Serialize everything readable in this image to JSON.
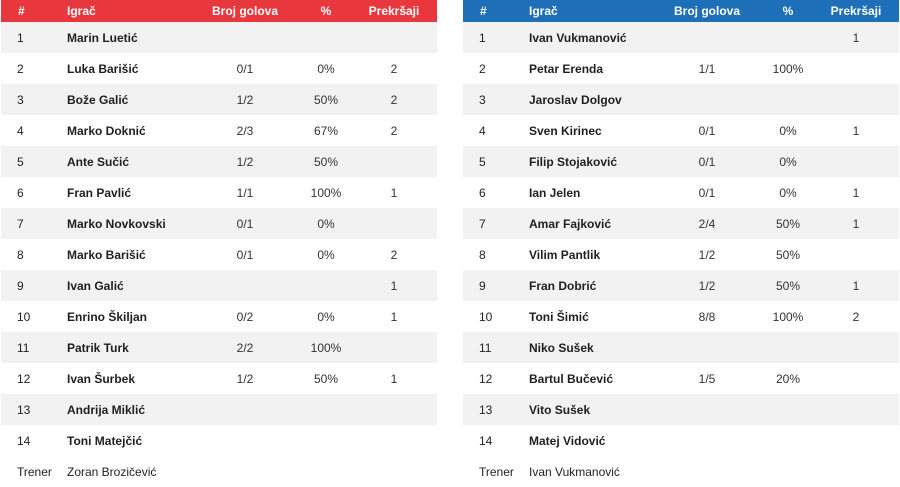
{
  "columns": {
    "num": "#",
    "player": "Igrač",
    "goals": "Broj golova",
    "pct": "%",
    "fouls": "Prekršaji"
  },
  "home": {
    "accent": "#e8373d",
    "rows": [
      {
        "num": "1",
        "player": "Marin Luetić",
        "goals": "",
        "pct": "",
        "fouls": ""
      },
      {
        "num": "2",
        "player": "Luka Barišić",
        "goals": "0/1",
        "pct": "0%",
        "fouls": "2"
      },
      {
        "num": "3",
        "player": "Bože Galić",
        "goals": "1/2",
        "pct": "50%",
        "fouls": "2"
      },
      {
        "num": "4",
        "player": "Marko Doknić",
        "goals": "2/3",
        "pct": "67%",
        "fouls": "2"
      },
      {
        "num": "5",
        "player": "Ante Sučić",
        "goals": "1/2",
        "pct": "50%",
        "fouls": ""
      },
      {
        "num": "6",
        "player": "Fran Pavlić",
        "goals": "1/1",
        "pct": "100%",
        "fouls": "1"
      },
      {
        "num": "7",
        "player": "Marko Novkovski",
        "goals": "0/1",
        "pct": "0%",
        "fouls": ""
      },
      {
        "num": "8",
        "player": "Marko Barišić",
        "goals": "0/1",
        "pct": "0%",
        "fouls": "2"
      },
      {
        "num": "9",
        "player": "Ivan Galić",
        "goals": "",
        "pct": "",
        "fouls": "1"
      },
      {
        "num": "10",
        "player": "Enrino Škiljan",
        "goals": "0/2",
        "pct": "0%",
        "fouls": "1"
      },
      {
        "num": "11",
        "player": "Patrik Turk",
        "goals": "2/2",
        "pct": "100%",
        "fouls": ""
      },
      {
        "num": "12",
        "player": "Ivan Šurbek",
        "goals": "1/2",
        "pct": "50%",
        "fouls": "1"
      },
      {
        "num": "13",
        "player": "Andrija Miklić",
        "goals": "",
        "pct": "",
        "fouls": ""
      },
      {
        "num": "14",
        "player": "Toni Matejčić",
        "goals": "",
        "pct": "",
        "fouls": ""
      }
    ],
    "coach": {
      "label": "Trener",
      "name": "Zoran Brozičević"
    }
  },
  "away": {
    "accent": "#1d70b8",
    "rows": [
      {
        "num": "1",
        "player": "Ivan Vukmanović",
        "goals": "",
        "pct": "",
        "fouls": "1"
      },
      {
        "num": "2",
        "player": "Petar Erenda",
        "goals": "1/1",
        "pct": "100%",
        "fouls": ""
      },
      {
        "num": "3",
        "player": "Jaroslav Dolgov",
        "goals": "",
        "pct": "",
        "fouls": ""
      },
      {
        "num": "4",
        "player": "Sven Kirinec",
        "goals": "0/1",
        "pct": "0%",
        "fouls": "1"
      },
      {
        "num": "5",
        "player": "Filip Stojaković",
        "goals": "0/1",
        "pct": "0%",
        "fouls": ""
      },
      {
        "num": "6",
        "player": "Ian Jelen",
        "goals": "0/1",
        "pct": "0%",
        "fouls": "1"
      },
      {
        "num": "7",
        "player": "Amar Fajković",
        "goals": "2/4",
        "pct": "50%",
        "fouls": "1"
      },
      {
        "num": "8",
        "player": "Vilim Pantlik",
        "goals": "1/2",
        "pct": "50%",
        "fouls": ""
      },
      {
        "num": "9",
        "player": "Fran Dobrić",
        "goals": "1/2",
        "pct": "50%",
        "fouls": "1"
      },
      {
        "num": "10",
        "player": "Toni Šimić",
        "goals": "8/8",
        "pct": "100%",
        "fouls": "2"
      },
      {
        "num": "11",
        "player": "Niko Sušek",
        "goals": "",
        "pct": "",
        "fouls": ""
      },
      {
        "num": "12",
        "player": "Bartul Bučević",
        "goals": "1/5",
        "pct": "20%",
        "fouls": ""
      },
      {
        "num": "13",
        "player": "Vito Sušek",
        "goals": "",
        "pct": "",
        "fouls": ""
      },
      {
        "num": "14",
        "player": "Matej Vidović",
        "goals": "",
        "pct": "",
        "fouls": ""
      }
    ],
    "coach": {
      "label": "Trener",
      "name": "Ivan Vukmanović"
    }
  }
}
